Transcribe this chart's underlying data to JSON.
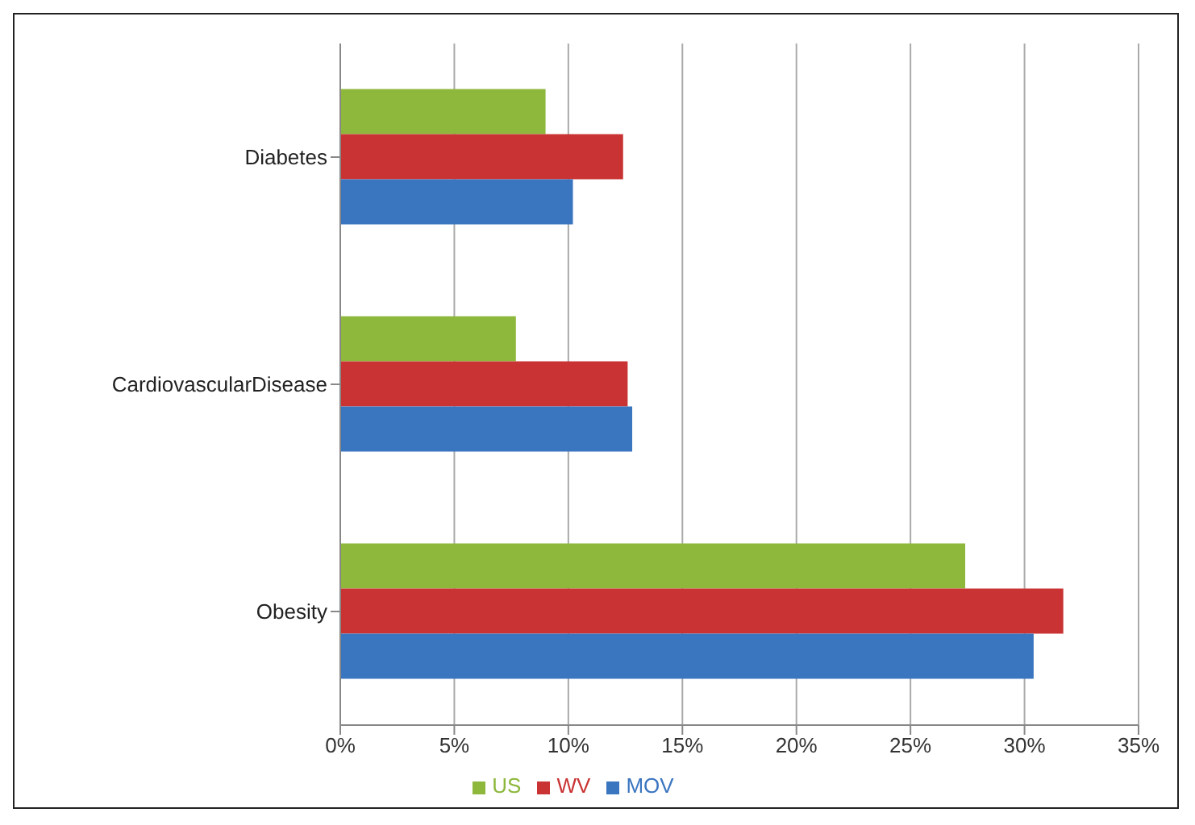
{
  "chart_data": {
    "type": "bar",
    "orientation": "horizontal",
    "categories": [
      "Diabetes",
      "CardiovascularDisease",
      "Obesity"
    ],
    "series": [
      {
        "name": "US",
        "color": "#8db83c",
        "values": [
          9.0,
          7.7,
          27.4
        ]
      },
      {
        "name": "WV",
        "color": "#c93333",
        "values": [
          12.4,
          12.6,
          31.7
        ]
      },
      {
        "name": "MOV",
        "color": "#3a75c0",
        "values": [
          10.2,
          12.8,
          30.4
        ]
      }
    ],
    "xlim": [
      0,
      35
    ],
    "xticks": [
      {
        "value": 0,
        "label": "0%"
      },
      {
        "value": 5,
        "label": "5%"
      },
      {
        "value": 10,
        "label": "10%"
      },
      {
        "value": 15,
        "label": "15%"
      },
      {
        "value": 20,
        "label": "20%"
      },
      {
        "value": 25,
        "label": "25%"
      },
      {
        "value": 30,
        "label": "30%"
      },
      {
        "value": 35,
        "label": "35%"
      }
    ],
    "grid": "x",
    "legend": "bottom"
  }
}
